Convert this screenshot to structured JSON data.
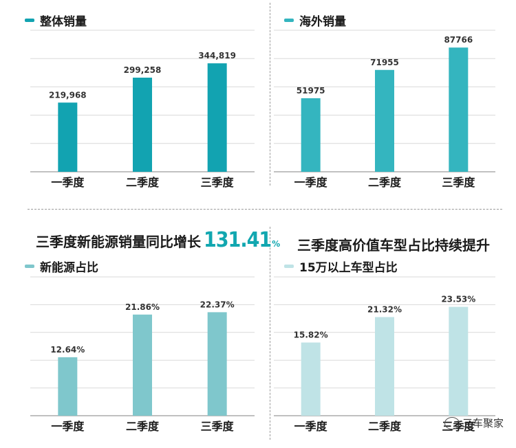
{
  "headlines": {
    "nev_prefix": "三季度新能源销量同比增长",
    "nev_growth": "131.41",
    "nev_growth_unit": "%",
    "premium": "三季度高价值车型占比持续提升"
  },
  "watermark": "三车聚家",
  "chart_data": [
    {
      "type": "bar",
      "legend": "整体销量",
      "categories": [
        "一季度",
        "二季度",
        "三季度"
      ],
      "values": [
        219968,
        299258,
        344819
      ],
      "value_labels": [
        "219,968",
        "299,258",
        "344,819"
      ],
      "ylim": [
        0,
        450000
      ],
      "gridlines": 5,
      "color": "#12a3b1"
    },
    {
      "type": "bar",
      "legend": "海外销量",
      "categories": [
        "一季度",
        "二季度",
        "三季度"
      ],
      "values": [
        51975,
        71955,
        87766
      ],
      "value_labels": [
        "51975",
        "71955",
        "87766"
      ],
      "ylim": [
        0,
        100000
      ],
      "gridlines": 5,
      "color": "#34b5bf"
    },
    {
      "type": "bar",
      "legend": "新能源占比",
      "categories": [
        "一季度",
        "二季度",
        "三季度"
      ],
      "values": [
        12.64,
        21.86,
        22.37
      ],
      "value_labels": [
        "12.64%",
        "21.86%",
        "22.37%"
      ],
      "ylim": [
        0,
        30
      ],
      "gridlines": 5,
      "color": "#7fc7cc"
    },
    {
      "type": "bar",
      "legend": "15万以上车型占比",
      "categories": [
        "一季度",
        "二季度",
        "三季度"
      ],
      "values": [
        15.82,
        21.32,
        23.53
      ],
      "value_labels": [
        "15.82%",
        "21.32%",
        "23.53%"
      ],
      "ylim": [
        0,
        30
      ],
      "gridlines": 5,
      "color": "#bfe3e6"
    }
  ]
}
